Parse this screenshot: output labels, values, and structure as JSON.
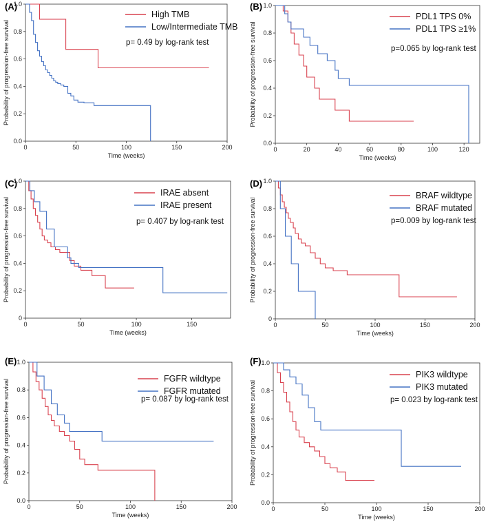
{
  "colors": {
    "red": "#d9424f",
    "blue": "#4472c4",
    "axis": "#333333"
  },
  "chart_data": [
    {
      "type": "line",
      "panel_label": "(A)",
      "ylabel": "Probability of progression-free survival",
      "xlabel": "Time (weeks)",
      "xlim": [
        0,
        200
      ],
      "ylim": [
        0,
        1.0
      ],
      "xticks": [
        0,
        50,
        100,
        150,
        200
      ],
      "yticks": [
        0,
        0.2,
        0.4,
        0.6,
        0.8,
        1.0
      ],
      "ytick_labels": [
        "0.0",
        "0.2",
        "0.4",
        "0.6",
        "0.8",
        "1.0"
      ],
      "annotation": "p= 0.49 by log-rank test",
      "series": [
        {
          "name": "High TMB",
          "color": "red",
          "x": [
            0,
            14,
            40,
            72,
            182
          ],
          "y": [
            1.0,
            0.89,
            0.67,
            0.535,
            0.535
          ]
        },
        {
          "name": "Low/Intermediate TMB",
          "color": "blue",
          "x": [
            0,
            4,
            6,
            8,
            10,
            12,
            14,
            16,
            18,
            20,
            22,
            24,
            26,
            28,
            30,
            32,
            35,
            38,
            42,
            45,
            48,
            52,
            58,
            68,
            124,
            124
          ],
          "y": [
            1.0,
            0.94,
            0.88,
            0.78,
            0.72,
            0.66,
            0.62,
            0.58,
            0.55,
            0.52,
            0.5,
            0.48,
            0.46,
            0.44,
            0.43,
            0.42,
            0.41,
            0.4,
            0.35,
            0.33,
            0.3,
            0.285,
            0.28,
            0.26,
            0.26,
            0.0
          ]
        }
      ]
    },
    {
      "type": "line",
      "panel_label": "(B)",
      "ylabel": "Probability of progression-free survival",
      "xlabel": "Time (weeks)",
      "xlim": [
        0,
        130
      ],
      "ylim": [
        0,
        1.0
      ],
      "xticks": [
        0,
        20,
        40,
        60,
        80,
        100,
        120
      ],
      "yticks": [
        0,
        0.2,
        0.4,
        0.6,
        0.8,
        1.0
      ],
      "ytick_labels": [
        "0.0",
        "0.2",
        "0.4",
        "0.6",
        "0.8",
        "1.0"
      ],
      "annotation": "p=0.065 by log-rank test",
      "series": [
        {
          "name": "PDL1 TPS 0%",
          "color": "red",
          "x": [
            0,
            5,
            8,
            10,
            12,
            15,
            18,
            20,
            25,
            28,
            38,
            40,
            47,
            88
          ],
          "y": [
            1.0,
            0.96,
            0.88,
            0.8,
            0.72,
            0.64,
            0.56,
            0.48,
            0.4,
            0.32,
            0.24,
            0.24,
            0.16,
            0.16
          ]
        },
        {
          "name": "PDL1 TPS ≥1%",
          "color": "blue",
          "x": [
            0,
            6,
            8,
            10,
            13,
            18,
            22,
            27,
            33,
            38,
            40,
            47,
            123,
            123
          ],
          "y": [
            1.0,
            0.94,
            0.88,
            0.83,
            0.83,
            0.77,
            0.71,
            0.65,
            0.6,
            0.53,
            0.47,
            0.42,
            0.42,
            0.0
          ]
        }
      ]
    },
    {
      "type": "line",
      "panel_label": "(C)",
      "ylabel": "Probability of progression-free survival",
      "xlabel": "Time (weeks)",
      "xlim": [
        0,
        185
      ],
      "ylim": [
        0,
        1.0
      ],
      "xticks": [
        0,
        50,
        100,
        150
      ],
      "yticks": [
        0,
        0.2,
        0.4,
        0.6,
        0.8,
        1.0
      ],
      "ytick_labels": [
        "0",
        "0.2",
        "0.4",
        "0.6",
        "0.8",
        "1.0"
      ],
      "annotation": "p= 0.407 by log-rank test",
      "series": [
        {
          "name": "IRAE absent",
          "color": "red",
          "x": [
            0,
            3,
            5,
            7,
            9,
            11,
            13,
            15,
            17,
            20,
            23,
            27,
            31,
            40,
            44,
            50,
            60,
            72,
            98
          ],
          "y": [
            1.0,
            0.93,
            0.87,
            0.8,
            0.75,
            0.7,
            0.65,
            0.6,
            0.57,
            0.55,
            0.52,
            0.5,
            0.48,
            0.42,
            0.38,
            0.35,
            0.31,
            0.22,
            0.22
          ]
        },
        {
          "name": "IRAE present",
          "color": "blue",
          "x": [
            0,
            4,
            8,
            13,
            19,
            26,
            38,
            41,
            48,
            124,
            124,
            182
          ],
          "y": [
            1.0,
            0.93,
            0.85,
            0.78,
            0.65,
            0.52,
            0.44,
            0.4,
            0.37,
            0.37,
            0.185,
            0.185
          ]
        }
      ]
    },
    {
      "type": "line",
      "panel_label": "(D)",
      "ylabel": "Probability of progression-free survival",
      "xlabel": "Time (weeks)",
      "xlim": [
        0,
        200
      ],
      "ylim": [
        0,
        1.0
      ],
      "xticks": [
        0,
        50,
        100,
        150,
        200
      ],
      "yticks": [
        0,
        0.2,
        0.4,
        0.6,
        0.8,
        1.0
      ],
      "ytick_labels": [
        "0",
        "0.2",
        "0.4",
        "0.6",
        "0.8",
        "1.0"
      ],
      "annotation": "p=0.009 by log-rank test",
      "series": [
        {
          "name": "BRAF wildtype",
          "color": "red",
          "x": [
            0,
            3,
            5,
            7,
            9,
            11,
            13,
            15,
            18,
            20,
            23,
            26,
            30,
            35,
            40,
            45,
            50,
            58,
            72,
            124,
            124,
            182
          ],
          "y": [
            1.0,
            0.95,
            0.9,
            0.85,
            0.81,
            0.77,
            0.73,
            0.7,
            0.66,
            0.62,
            0.58,
            0.55,
            0.53,
            0.48,
            0.44,
            0.4,
            0.37,
            0.35,
            0.32,
            0.32,
            0.16,
            0.16
          ]
        },
        {
          "name": "BRAF mutated",
          "color": "blue",
          "x": [
            0,
            5,
            10,
            16,
            23,
            40,
            40
          ],
          "y": [
            1.0,
            0.8,
            0.6,
            0.4,
            0.2,
            0.2,
            0.0
          ]
        }
      ]
    },
    {
      "type": "line",
      "panel_label": "(E)",
      "ylabel": "Probability of progression-free survival",
      "xlabel": "Time (weeks)",
      "xlim": [
        0,
        200
      ],
      "ylim": [
        0,
        1.0
      ],
      "xticks": [
        0,
        50,
        100,
        150,
        200
      ],
      "yticks": [
        0,
        0.2,
        0.4,
        0.6,
        0.8,
        1.0
      ],
      "ytick_labels": [
        "0.0",
        "0.2",
        "0.4",
        "0.6",
        "0.8",
        "1.0"
      ],
      "annotation": "p= 0.087 by log-rank test",
      "series": [
        {
          "name": "FGFR wildtype",
          "color": "red",
          "x": [
            0,
            4,
            7,
            10,
            13,
            16,
            19,
            22,
            25,
            30,
            35,
            40,
            45,
            50,
            55,
            68,
            124,
            124
          ],
          "y": [
            1.0,
            0.93,
            0.86,
            0.8,
            0.74,
            0.68,
            0.62,
            0.58,
            0.54,
            0.5,
            0.47,
            0.43,
            0.37,
            0.3,
            0.26,
            0.22,
            0.22,
            0.0
          ]
        },
        {
          "name": "FGFR mutated",
          "color": "blue",
          "x": [
            0,
            8,
            15,
            22,
            28,
            35,
            40,
            72,
            72,
            182
          ],
          "y": [
            1.0,
            0.9,
            0.8,
            0.7,
            0.62,
            0.56,
            0.5,
            0.5,
            0.43,
            0.43
          ]
        }
      ]
    },
    {
      "type": "line",
      "panel_label": "(F)",
      "ylabel": "Probability of progression-free survival",
      "xlabel": "Time (weeks)",
      "xlim": [
        0,
        200
      ],
      "ylim": [
        0,
        1.0
      ],
      "xticks": [
        0,
        50,
        100,
        150,
        200
      ],
      "yticks": [
        0,
        0.2,
        0.4,
        0.6,
        0.8,
        1.0
      ],
      "ytick_labels": [
        "0.0",
        "0.2",
        "0.4",
        "0.6",
        "0.8",
        "1.0"
      ],
      "annotation": "p= 0.023 by log-rank test",
      "series": [
        {
          "name": "PIK3 wildtype",
          "color": "red",
          "x": [
            0,
            4,
            7,
            10,
            13,
            16,
            19,
            22,
            25,
            30,
            35,
            40,
            45,
            50,
            55,
            62,
            70,
            98
          ],
          "y": [
            1.0,
            0.93,
            0.86,
            0.79,
            0.72,
            0.65,
            0.58,
            0.52,
            0.47,
            0.43,
            0.4,
            0.37,
            0.33,
            0.28,
            0.25,
            0.22,
            0.16,
            0.16
          ]
        },
        {
          "name": "PIK3 mutated",
          "color": "blue",
          "x": [
            0,
            10,
            16,
            22,
            28,
            34,
            40,
            46,
            124,
            124,
            182
          ],
          "y": [
            1.0,
            0.95,
            0.9,
            0.85,
            0.77,
            0.68,
            0.58,
            0.52,
            0.52,
            0.26,
            0.26
          ]
        }
      ]
    }
  ]
}
